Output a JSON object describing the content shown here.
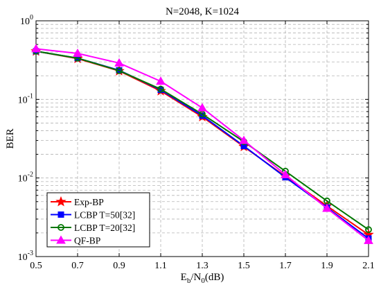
{
  "chart_data": {
    "type": "line",
    "title": "N=2048, K=1024",
    "xlabel": "E_b/N_0(dB)",
    "xlabel_parts": {
      "E": "E",
      "b": "b",
      "slash": "/N",
      "zero": "0",
      "unit": "(dB)"
    },
    "ylabel": "BER",
    "yscale": "log",
    "xlim": [
      0.5,
      2.1
    ],
    "ylim": [
      0.001,
      1
    ],
    "x_ticks": [
      "0.5",
      "0.7",
      "0.9",
      "1.1",
      "1.3",
      "1.5",
      "1.7",
      "1.9",
      "2.1"
    ],
    "y_ticks": [
      {
        "base": "10",
        "exp": "0",
        "value": 1
      },
      {
        "base": "10",
        "exp": "-1",
        "value": 0.1
      },
      {
        "base": "10",
        "exp": "-2",
        "value": 0.01
      },
      {
        "base": "10",
        "exp": "-3",
        "value": 0.001
      }
    ],
    "grid": true,
    "legend_position": "bottom-left",
    "x": [
      0.5,
      0.7,
      0.9,
      1.1,
      1.3,
      1.5,
      1.7,
      1.9,
      2.1
    ],
    "series": [
      {
        "name": "Exp-BP",
        "color": "#ff0000",
        "marker": "star",
        "values": [
          0.41,
          0.33,
          0.23,
          0.128,
          0.06,
          0.025,
          0.0105,
          0.0044,
          0.0019
        ]
      },
      {
        "name": "LCBP T=50[32]",
        "color": "#0000ff",
        "marker": "square",
        "values": [
          0.41,
          0.335,
          0.235,
          0.132,
          0.062,
          0.0255,
          0.0102,
          0.0042,
          0.0017
        ]
      },
      {
        "name": "LCBP T=20[32]",
        "color": "#007700",
        "marker": "circle",
        "values": [
          0.41,
          0.335,
          0.232,
          0.135,
          0.065,
          0.029,
          0.0122,
          0.0051,
          0.0022
        ]
      },
      {
        "name": "QF-BP",
        "color": "#ff00ff",
        "marker": "triangle",
        "values": [
          0.44,
          0.385,
          0.29,
          0.17,
          0.078,
          0.03,
          0.011,
          0.0041,
          0.0016
        ]
      }
    ]
  }
}
